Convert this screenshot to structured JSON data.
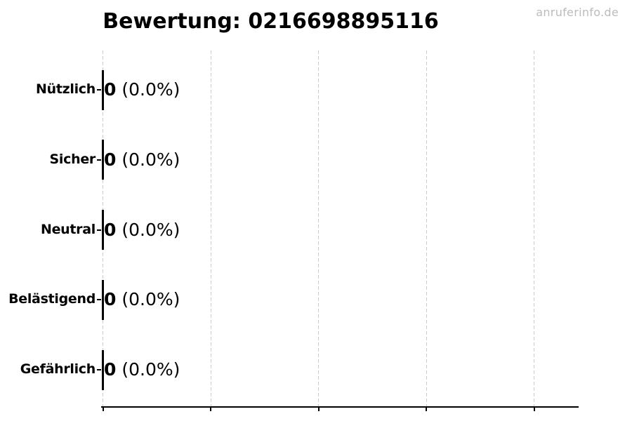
{
  "page": {
    "background_color": "#ffffff",
    "text_color": "#000000"
  },
  "watermark": {
    "text": "anruferinfo.de",
    "color": "#bcbcbc"
  },
  "chart_data": {
    "type": "bar",
    "orientation": "horizontal",
    "title": "Bewertung: 0216698895116",
    "categories": [
      "Nützlich",
      "Sicher",
      "Neutral",
      "Belästigend",
      "Gefährlich"
    ],
    "values": [
      0,
      0,
      0,
      0,
      0
    ],
    "value_counts": [
      "0",
      "0",
      "0",
      "0",
      "0"
    ],
    "value_percents": [
      "(0.0%)",
      "(0.0%)",
      "(0.0%)",
      "(0.0%)",
      "(0.0%)"
    ],
    "bar_labels": [
      "0 (0.0%)",
      "0 (0.0%)",
      "0 (0.0%)",
      "0 (0.0%)",
      "0 (0.0%)"
    ],
    "xlabel": "",
    "ylabel": "",
    "x_tick_labels": [],
    "num_vertical_gridlines": 5,
    "grid": {
      "style": "dashed",
      "color": "#cccccc"
    },
    "bar_edge_color": "#000000",
    "axis_color": "#000000",
    "legend": "none"
  }
}
